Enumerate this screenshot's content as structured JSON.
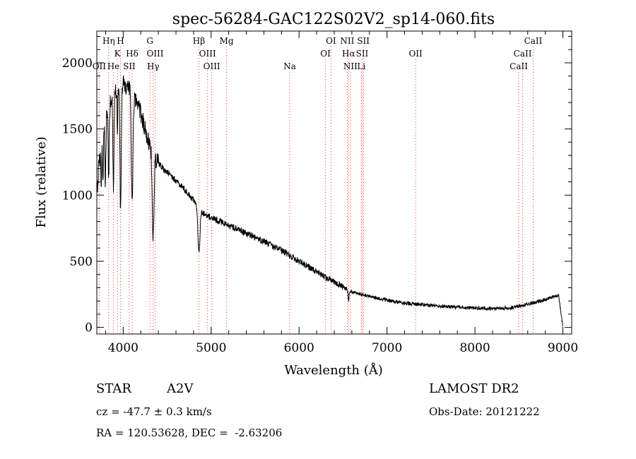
{
  "chart_data": {
    "type": "line",
    "title": "spec-56284-GAC122S02V2_sp14-060.fits",
    "xlabel": "Wavelength (Å)",
    "ylabel": "Flux (relative)",
    "xlim": [
      3700,
      9100
    ],
    "ylim": [
      -50,
      2240
    ],
    "xticks": [
      4000,
      5000,
      6000,
      7000,
      8000,
      9000
    ],
    "xtick_labels": [
      "4000",
      "5000",
      "6000",
      "7000",
      "8000",
      "9000"
    ],
    "yticks": [
      0,
      500,
      1000,
      1500,
      2000
    ],
    "ytick_labels": [
      "0",
      "500",
      "1000",
      "1500",
      "2000"
    ],
    "grid": false,
    "line_color": "#000000",
    "marker_color": "#ff3030",
    "continuum": [
      [
        3700,
        1000
      ],
      [
        3720,
        1200
      ],
      [
        3760,
        1400
      ],
      [
        3800,
        1560
      ],
      [
        3850,
        1700
      ],
      [
        3900,
        1780
      ],
      [
        3950,
        1830
      ],
      [
        4000,
        1840
      ],
      [
        4050,
        1820
      ],
      [
        4100,
        1760
      ],
      [
        4150,
        1690
      ],
      [
        4200,
        1620
      ],
      [
        4250,
        1500
      ],
      [
        4300,
        1390
      ],
      [
        4350,
        1300
      ],
      [
        4400,
        1240
      ],
      [
        4500,
        1170
      ],
      [
        4600,
        1110
      ],
      [
        4700,
        1040
      ],
      [
        4800,
        960
      ],
      [
        4900,
        870
      ],
      [
        5000,
        830
      ],
      [
        5100,
        800
      ],
      [
        5200,
        770
      ],
      [
        5400,
        710
      ],
      [
        5600,
        650
      ],
      [
        5800,
        580
      ],
      [
        6000,
        500
      ],
      [
        6200,
        420
      ],
      [
        6400,
        340
      ],
      [
        6600,
        270
      ],
      [
        6800,
        235
      ],
      [
        7000,
        205
      ],
      [
        7200,
        185
      ],
      [
        7500,
        165
      ],
      [
        7800,
        152
      ],
      [
        8000,
        147
      ],
      [
        8200,
        143
      ],
      [
        8400,
        148
      ],
      [
        8600,
        175
      ],
      [
        8800,
        210
      ],
      [
        8950,
        245
      ],
      [
        9000,
        0
      ]
    ],
    "absorption_lines": [
      {
        "x": 3750,
        "depth": 300,
        "width": 6
      },
      {
        "x": 3771,
        "depth": 350,
        "width": 6
      },
      {
        "x": 3798,
        "depth": 450,
        "width": 7
      },
      {
        "x": 3835,
        "depth": 550,
        "width": 8
      },
      {
        "x": 3889,
        "depth": 700,
        "width": 9
      },
      {
        "x": 3934,
        "depth": 350,
        "width": 5
      },
      {
        "x": 3970,
        "depth": 1000,
        "width": 10
      },
      {
        "x": 4101,
        "depth": 850,
        "width": 12
      },
      {
        "x": 4340,
        "depth": 650,
        "width": 14
      },
      {
        "x": 4861,
        "depth": 350,
        "width": 16
      },
      {
        "x": 6563,
        "depth": 80,
        "width": 8
      }
    ],
    "spectral_lines": [
      {
        "name": "Hη",
        "x": 3835,
        "row": 1
      },
      {
        "name": "H",
        "x": 3969,
        "row": 1
      },
      {
        "name": "K",
        "x": 3934,
        "row": 2
      },
      {
        "name": "Hδ",
        "x": 4102,
        "row": 2
      },
      {
        "name": "OII",
        "x": 3727,
        "row": 3
      },
      {
        "name": "He",
        "x": 3889,
        "row": 3
      },
      {
        "name": "SII",
        "x": 4069,
        "row": 3
      },
      {
        "name": "G",
        "x": 4304,
        "row": 1
      },
      {
        "name": "OIII",
        "x": 4363,
        "row": 2
      },
      {
        "name": "Hγ",
        "x": 4341,
        "row": 3
      },
      {
        "name": "Hβ",
        "x": 4861,
        "row": 1
      },
      {
        "name": "OIII",
        "x": 4959,
        "row": 2
      },
      {
        "name": "OIII",
        "x": 5007,
        "row": 3
      },
      {
        "name": "Mg",
        "x": 5175,
        "row": 1
      },
      {
        "name": "Na",
        "x": 5893,
        "row": 3
      },
      {
        "name": "OI",
        "x": 6363,
        "row": 1
      },
      {
        "name": "OI",
        "x": 6300,
        "row": 2
      },
      {
        "name": "NII",
        "x": 6548,
        "row": 1
      },
      {
        "name": "SII",
        "x": 6731,
        "row": 1
      },
      {
        "name": "Hα",
        "x": 6563,
        "row": 2
      },
      {
        "name": "SII",
        "x": 6717,
        "row": 2
      },
      {
        "name": "NII",
        "x": 6584,
        "row": 3
      },
      {
        "name": "Li",
        "x": 6708,
        "row": 3
      },
      {
        "name": "OII",
        "x": 7325,
        "row": 2
      },
      {
        "name": "CaII",
        "x": 8662,
        "row": 1
      },
      {
        "name": "CaII",
        "x": 8542,
        "row": 2
      },
      {
        "name": "CaII",
        "x": 8498,
        "row": 3
      }
    ]
  },
  "info": {
    "object_class": "STAR",
    "subclass": "A2V",
    "survey": "LAMOST DR2",
    "redshift": "cz = -47.7 ± 0.3 km/s",
    "obs_date": "Obs-Date: 20121222",
    "coords": "RA = 120.53628, DEC =  -2.63206"
  }
}
